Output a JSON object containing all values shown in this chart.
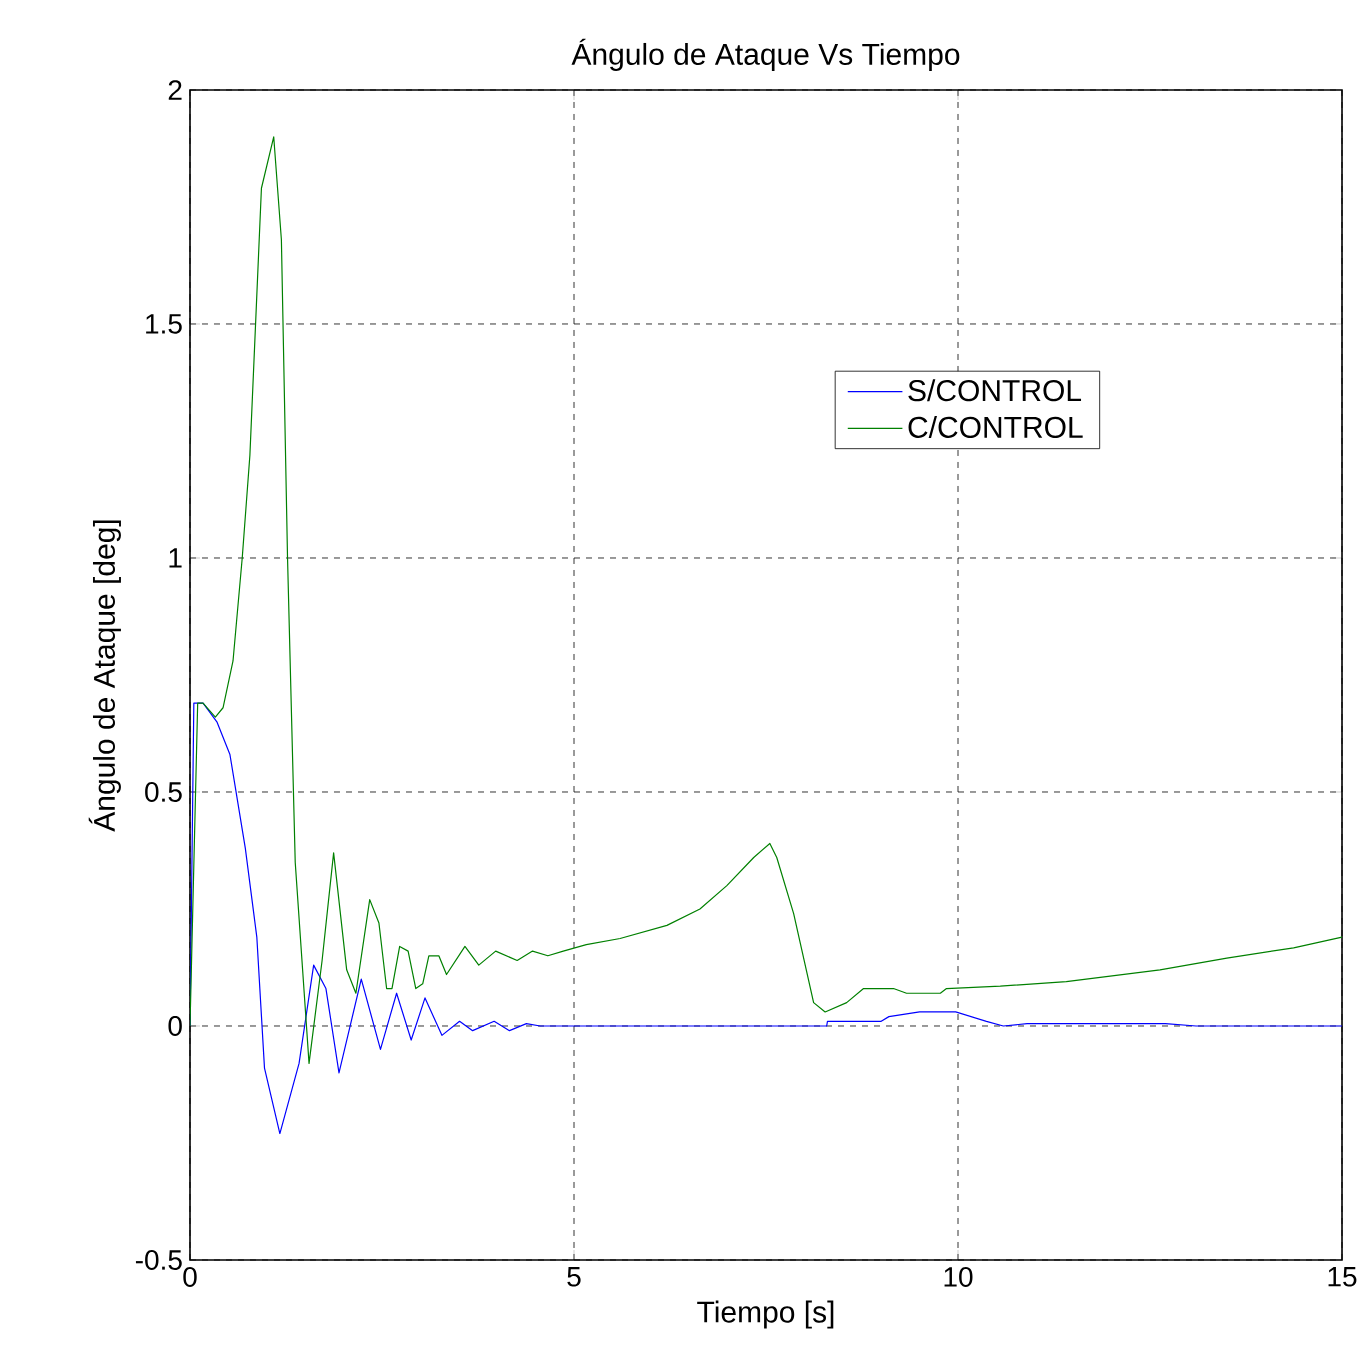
{
  "chart_data": {
    "type": "line",
    "title": "Ángulo de Ataque Vs Tiempo",
    "xlabel": "Tiempo [s]",
    "ylabel": "Ángulo de Ataque [deg]",
    "xlim": [
      0,
      15
    ],
    "ylim": [
      -0.5,
      2
    ],
    "xticks": [
      0,
      5,
      10,
      15
    ],
    "yticks": [
      -0.5,
      0,
      0.5,
      1,
      1.5,
      2
    ],
    "grid": true,
    "legend": "top right",
    "line_style": "solid",
    "marker": "none",
    "series": [
      {
        "name": "S/CONTROL",
        "color": "#0000ff",
        "x": [
          0,
          0.05,
          0.17,
          0.35,
          0.52,
          0.72,
          0.87,
          0.97,
          1.17,
          1.42,
          1.61,
          1.77,
          1.94,
          2.23,
          2.48,
          2.69,
          2.88,
          3.06,
          3.28,
          3.51,
          3.68,
          3.96,
          4.16,
          4.38,
          4.56,
          8.29,
          8.3,
          9.0,
          9.1,
          9.5,
          9.97,
          10.37,
          10.59,
          10.9,
          11.5,
          12.7,
          13.1,
          15
        ],
        "values": [
          0,
          0.69,
          0.69,
          0.65,
          0.58,
          0.38,
          0.19,
          -0.09,
          -0.23,
          -0.08,
          0.13,
          0.08,
          -0.1,
          0.1,
          -0.05,
          0.07,
          -0.03,
          0.06,
          -0.02,
          0.01,
          -0.01,
          0.01,
          -0.01,
          0.005,
          0,
          0,
          0.01,
          0.01,
          0.02,
          0.03,
          0.03,
          0.01,
          0,
          0.005,
          0.005,
          0.005,
          0,
          0
        ]
      },
      {
        "name": "C/CONTROL",
        "color": "#008000",
        "x": [
          0,
          0.1,
          0.17,
          0.33,
          0.43,
          0.56,
          0.68,
          0.78,
          0.93,
          1.09,
          1.19,
          1.27,
          1.37,
          1.55,
          1.72,
          1.87,
          2.04,
          2.16,
          2.34,
          2.46,
          2.56,
          2.63,
          2.73,
          2.84,
          2.94,
          3.03,
          3.11,
          3.24,
          3.34,
          3.58,
          3.76,
          3.98,
          4.26,
          4.46,
          4.66,
          4.86,
          5.16,
          5.6,
          6.21,
          6.64,
          6.99,
          7.34,
          7.55,
          7.64,
          7.86,
          8.12,
          8.27,
          8.55,
          8.77,
          9.16,
          9.33,
          9.77,
          9.85,
          10.55,
          11.41,
          12.63,
          13.5,
          14.37,
          15
        ],
        "values": [
          0,
          0.69,
          0.69,
          0.66,
          0.68,
          0.78,
          1.0,
          1.22,
          1.79,
          1.9,
          1.68,
          1.0,
          0.35,
          -0.08,
          0.14,
          0.37,
          0.12,
          0.07,
          0.27,
          0.22,
          0.08,
          0.08,
          0.17,
          0.16,
          0.08,
          0.09,
          0.15,
          0.15,
          0.11,
          0.17,
          0.13,
          0.16,
          0.14,
          0.16,
          0.15,
          0.16,
          0.174,
          0.187,
          0.215,
          0.25,
          0.3,
          0.36,
          0.39,
          0.36,
          0.24,
          0.05,
          0.03,
          0.05,
          0.08,
          0.08,
          0.07,
          0.07,
          0.08,
          0.085,
          0.095,
          0.12,
          0.145,
          0.167,
          0.19
        ]
      }
    ]
  }
}
